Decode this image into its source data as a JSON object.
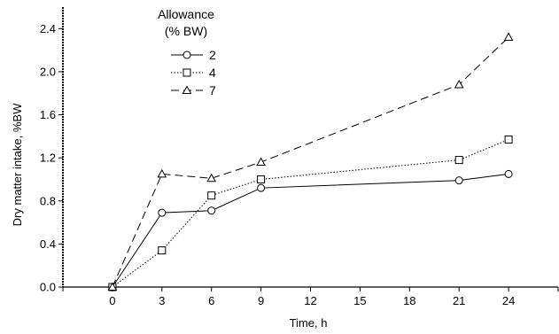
{
  "chart_data": {
    "type": "line",
    "title": "",
    "xlabel": "Time, h",
    "ylabel": "Dry matter intake, %BW",
    "xlim": [
      -3,
      27
    ],
    "ylim": [
      0,
      2.6
    ],
    "xticks": [
      0,
      3,
      6,
      9,
      12,
      15,
      18,
      21,
      24
    ],
    "yticks": [
      0.0,
      0.4,
      0.8,
      1.2,
      1.6,
      2.0,
      2.4
    ],
    "ytick_labels": [
      "0.0",
      "0.4",
      "0.8",
      "1.2",
      "1.6",
      "2.0",
      "2.4"
    ],
    "grid": false,
    "legend": {
      "title_lines": [
        "Allowance",
        "(% BW)"
      ],
      "placement": "top-left"
    },
    "series": [
      {
        "name": "2",
        "marker": "circle",
        "line_style": "solid",
        "x": [
          0,
          3,
          6,
          9,
          21,
          24
        ],
        "y": [
          0.0,
          0.69,
          0.71,
          0.92,
          0.99,
          1.05
        ]
      },
      {
        "name": "4",
        "marker": "square",
        "line_style": "dotted",
        "x": [
          0,
          3,
          6,
          9,
          21,
          24
        ],
        "y": [
          0.0,
          0.34,
          0.85,
          1.0,
          1.18,
          1.37
        ]
      },
      {
        "name": "7",
        "marker": "triangle",
        "line_style": "dashed",
        "x": [
          0,
          3,
          6,
          9,
          21,
          24
        ],
        "y": [
          0.0,
          1.05,
          1.01,
          1.16,
          1.88,
          2.32
        ]
      }
    ]
  }
}
